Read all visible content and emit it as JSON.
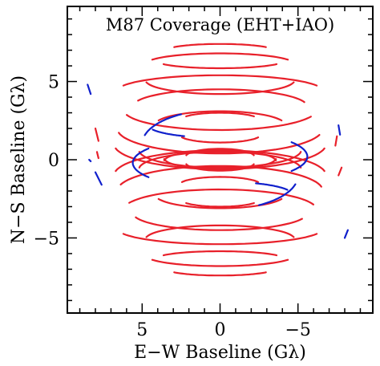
{
  "chart_data": {
    "type": "scatter",
    "title": "M87 Coverage (EHT+IAO)",
    "xlabel": "E−W Baseline (Gλ)",
    "ylabel": "N−S Baseline (Gλ)",
    "x_reversed": true,
    "xlim": [
      9.8,
      -9.8
    ],
    "ylim": [
      -9.8,
      9.8
    ],
    "x_ticks": [
      5,
      0,
      -5
    ],
    "x_tick_labels": [
      "5",
      "0",
      "−5"
    ],
    "y_ticks": [
      5,
      0,
      -5
    ],
    "y_tick_labels": [
      "5",
      "0",
      "−5"
    ],
    "grid": false,
    "series": [
      {
        "color": "#e8202a",
        "tracks": [
          {
            "cx": 0.0,
            "cy": 6.3,
            "rx": 4.0,
            "ry": 0.45,
            "a0": 205,
            "a1": 335,
            "mirror": true
          },
          {
            "cx": 0.0,
            "cy": 5.1,
            "rx": 4.8,
            "ry": 0.9,
            "a0": 190,
            "a1": 350,
            "mirror": true
          },
          {
            "cx": 0.0,
            "cy": 3.2,
            "rx": 6.2,
            "ry": 1.3,
            "a0": 200,
            "a1": 345,
            "mirror": true
          },
          {
            "cx": 0.0,
            "cy": 2.0,
            "rx": 6.6,
            "ry": 1.6,
            "a0": 195,
            "a1": 350,
            "mirror": true
          },
          {
            "cx": 0.0,
            "cy": 1.0,
            "rx": 6.8,
            "ry": 1.6,
            "a0": 190,
            "a1": 350,
            "mirror": true
          },
          {
            "cx": 0.0,
            "cy": 0.6,
            "rx": 5.2,
            "ry": 1.1,
            "a0": 185,
            "a1": 355,
            "mirror": true
          },
          {
            "cx": 0.0,
            "cy": 0.1,
            "rx": 3.6,
            "ry": 0.7,
            "a0": 185,
            "a1": 355,
            "mirror": true
          },
          {
            "cx": 0.0,
            "cy": -0.2,
            "rx": 2.2,
            "ry": 0.5,
            "a0": 190,
            "a1": 350,
            "mirror": true
          },
          {
            "cx": 0.0,
            "cy": -2.2,
            "rx": 4.2,
            "ry": 0.9,
            "a0": 200,
            "a1": 340,
            "mirror": true
          },
          {
            "cx": 0.0,
            "cy": -3.4,
            "rx": 5.6,
            "ry": 1.1,
            "a0": 200,
            "a1": 345,
            "mirror": true
          },
          {
            "cx": 0.0,
            "cy": -4.4,
            "rx": 6.6,
            "ry": 1.0,
            "a0": 200,
            "a1": 340,
            "mirror": true
          },
          {
            "cx": 0.0,
            "cy": -6.1,
            "rx": 4.8,
            "ry": 0.7,
            "a0": 205,
            "a1": 335,
            "mirror": true
          },
          {
            "cx": 0.0,
            "cy": -7.0,
            "rx": 3.4,
            "ry": 0.4,
            "a0": 210,
            "a1": 330,
            "mirror": true
          },
          {
            "cx": 0.0,
            "cy": -2.6,
            "rx": 2.4,
            "ry": 0.4,
            "a0": 205,
            "a1": 335,
            "mirror": true
          },
          {
            "cx": 0.0,
            "cy": 1.6,
            "rx": 2.6,
            "ry": 0.5,
            "a0": 200,
            "a1": 340,
            "mirror": true
          }
        ],
        "segments": [
          {
            "x": [
              8.0,
              7.8
            ],
            "y": [
              2.0,
              1.2
            ]
          },
          {
            "x": [
              7.9,
              7.8
            ],
            "y": [
              0.5,
              0.1
            ]
          },
          {
            "x": [
              -7.5,
              -7.4
            ],
            "y": [
              1.5,
              0.9
            ]
          },
          {
            "x": [
              -7.8,
              -7.6
            ],
            "y": [
              -0.5,
              -1.0
            ]
          }
        ]
      },
      {
        "color": "#1020cc",
        "tracks": [
          {
            "cx": 0.0,
            "cy": 0.2,
            "rx": 5.6,
            "ry": 1.6,
            "a0": 145,
            "a1": 215,
            "mirror": true
          },
          {
            "cx": 0.0,
            "cy": 1.0,
            "rx": 5.0,
            "ry": 2.2,
            "a0": 15,
            "a1": 60,
            "mirror": true
          },
          {
            "cx": 0.0,
            "cy": -2.2,
            "rx": 4.6,
            "ry": 0.8,
            "a0": 120,
            "a1": 160,
            "mirror": true
          }
        ],
        "segments": [
          {
            "x": [
              8.5,
              8.3
            ],
            "y": [
              4.8,
              4.2
            ]
          },
          {
            "x": [
              8.4,
              8.3
            ],
            "y": [
              0.0,
              -0.1
            ]
          },
          {
            "x": [
              8.0,
              7.6
            ],
            "y": [
              -0.8,
              -1.6
            ]
          },
          {
            "x": [
              -7.6,
              -7.7
            ],
            "y": [
              2.2,
              1.6
            ]
          },
          {
            "x": [
              -8.2,
              -8.0
            ],
            "y": [
              -4.5,
              -5.0
            ]
          }
        ]
      }
    ]
  }
}
